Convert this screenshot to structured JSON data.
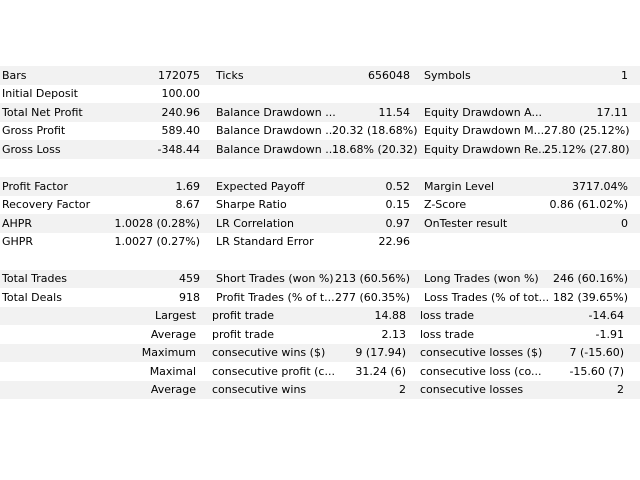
{
  "rows": [
    {
      "type": "row",
      "shade": true,
      "cells": [
        "Bars",
        "172075",
        "Ticks",
        "656048",
        "Symbols",
        "1"
      ]
    },
    {
      "type": "row",
      "shade": false,
      "cells": [
        "Initial Deposit",
        "100.00",
        "",
        "",
        "",
        ""
      ]
    },
    {
      "type": "row",
      "shade": true,
      "cells": [
        "Total Net Profit",
        "240.96",
        "Balance Drawdown ...",
        "11.54",
        "Equity Drawdown A...",
        "17.11"
      ]
    },
    {
      "type": "row",
      "shade": false,
      "cells": [
        "Gross Profit",
        "589.40",
        "Balance Drawdown ...",
        "20.32 (18.68%)",
        "Equity Drawdown M...",
        "27.80 (25.12%)"
      ]
    },
    {
      "type": "row",
      "shade": true,
      "cells": [
        "Gross Loss",
        "-348.44",
        "Balance Drawdown ...",
        "18.68% (20.32)",
        "Equity Drawdown Re...",
        "25.12% (27.80)"
      ]
    },
    {
      "type": "blank"
    },
    {
      "type": "row",
      "shade": true,
      "cells": [
        "Profit Factor",
        "1.69",
        "Expected Payoff",
        "0.52",
        "Margin Level",
        "3717.04%"
      ]
    },
    {
      "type": "row",
      "shade": false,
      "cells": [
        "Recovery Factor",
        "8.67",
        "Sharpe Ratio",
        "0.15",
        "Z-Score",
        "0.86 (61.02%)"
      ]
    },
    {
      "type": "row",
      "shade": true,
      "cells": [
        "AHPR",
        "1.0028 (0.28%)",
        "LR Correlation",
        "0.97",
        "OnTester result",
        "0"
      ]
    },
    {
      "type": "row",
      "shade": false,
      "cells": [
        "GHPR",
        "1.0027 (0.27%)",
        "LR Standard Error",
        "22.96",
        "",
        ""
      ]
    },
    {
      "type": "blank"
    },
    {
      "type": "row",
      "shade": true,
      "cells": [
        "Total Trades",
        "459",
        "Short Trades (won %)",
        "213 (60.56%)",
        "Long Trades (won %)",
        "246 (60.16%)"
      ]
    },
    {
      "type": "row",
      "shade": false,
      "cells": [
        "Total Deals",
        "918",
        "Profit Trades (% of t...",
        "277 (60.35%)",
        "Loss Trades (% of tot...",
        "182 (39.65%)"
      ]
    },
    {
      "type": "split",
      "shade": true,
      "cells": [
        "Largest",
        "profit trade",
        "14.88",
        "loss trade",
        "-14.64"
      ]
    },
    {
      "type": "split",
      "shade": false,
      "cells": [
        "Average",
        "profit trade",
        "2.13",
        "loss trade",
        "-1.91"
      ]
    },
    {
      "type": "split",
      "shade": true,
      "cells": [
        "Maximum",
        "consecutive wins ($)",
        "9 (17.94)",
        "consecutive losses ($)",
        "7 (-15.60)"
      ]
    },
    {
      "type": "split",
      "shade": false,
      "cells": [
        "Maximal",
        "consecutive profit (c...",
        "31.24 (6)",
        "consecutive loss (co...",
        "-15.60 (7)"
      ]
    },
    {
      "type": "split",
      "shade": true,
      "cells": [
        "Average",
        "consecutive wins",
        "2",
        "consecutive losses",
        "2"
      ]
    }
  ]
}
